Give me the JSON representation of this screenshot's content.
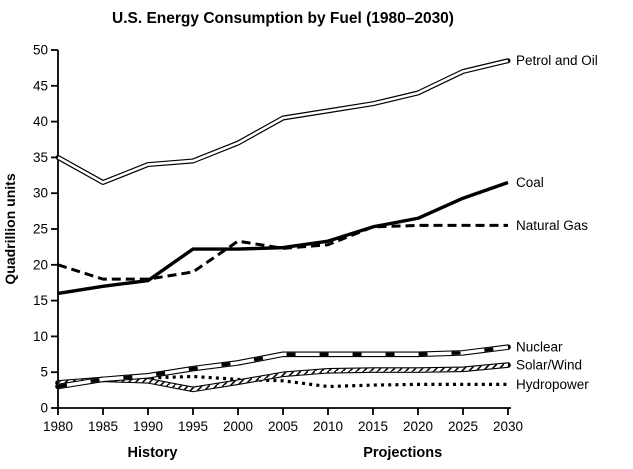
{
  "colors": {
    "ink": "#000000",
    "background": "#ffffff"
  },
  "chart_data": {
    "type": "line",
    "title": "U.S. Energy Consumption by Fuel (1980–2030)",
    "ylabel": "Quadrillion units",
    "xlabel": "",
    "ylim": [
      0,
      50
    ],
    "xlim": [
      1980,
      2030
    ],
    "y_tick_step": 5,
    "x_tick_step": 5,
    "grid": false,
    "legend_position": "labels-at-line-ends-right",
    "x": [
      1980,
      1985,
      1990,
      1995,
      2000,
      2005,
      2010,
      2015,
      2020,
      2025,
      2030
    ],
    "series": [
      {
        "name": "Petrol and Oil",
        "style": "double-line",
        "values": [
          35,
          31.5,
          34,
          34.5,
          37,
          40.5,
          41.5,
          42.5,
          44,
          47,
          48.5
        ]
      },
      {
        "name": "Coal",
        "style": "thick-solid",
        "values": [
          16,
          17,
          17.8,
          22.2,
          22.2,
          22.4,
          23.3,
          25.3,
          26.5,
          29.3,
          31.5
        ]
      },
      {
        "name": "Natural Gas",
        "style": "dashed",
        "values": [
          20,
          18,
          18,
          19,
          23.3,
          22.3,
          22.8,
          25.3,
          25.5,
          25.5,
          25.5
        ]
      },
      {
        "name": "Nuclear",
        "style": "band-dash",
        "values": [
          3,
          4,
          4.5,
          5.5,
          6.3,
          7.5,
          7.5,
          7.5,
          7.5,
          7.7,
          8.5
        ]
      },
      {
        "name": "Solar/Wind",
        "style": "band-hatch",
        "values": [
          3.5,
          4,
          3.8,
          2.6,
          3.6,
          4.7,
          5.2,
          5.3,
          5.3,
          5.4,
          6
        ]
      },
      {
        "name": "Hydropower",
        "style": "dotted",
        "values": [
          3.2,
          4.1,
          4.2,
          4.4,
          4,
          3.8,
          3,
          3.2,
          3.3,
          3.3,
          3.3
        ]
      }
    ],
    "annotations": [
      {
        "text": "History",
        "x": 1990.5
      },
      {
        "text": "Projections",
        "x": 2018.3
      }
    ]
  }
}
